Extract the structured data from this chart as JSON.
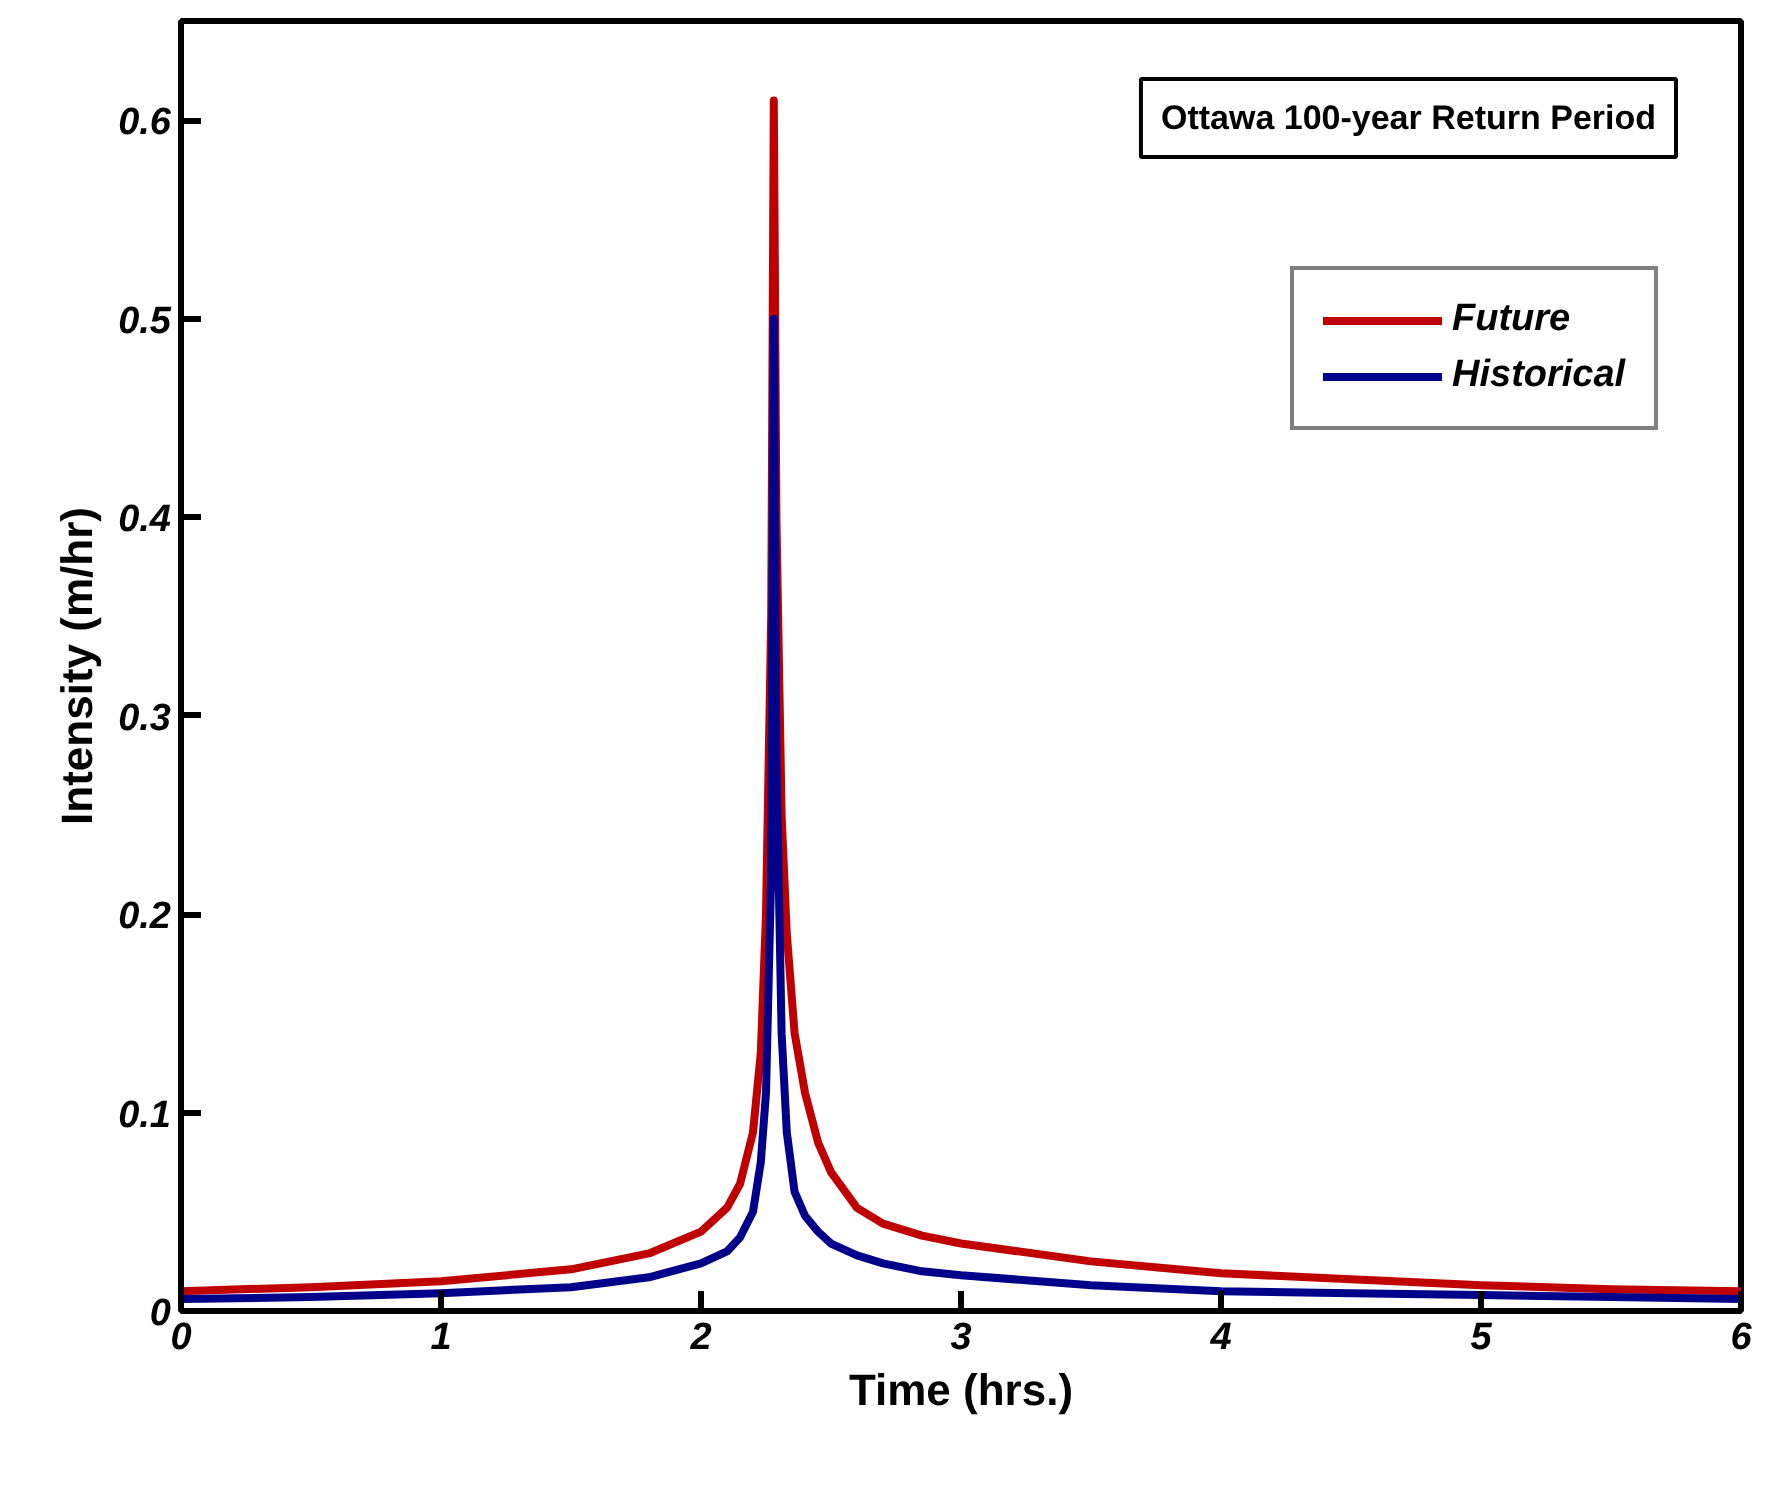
{
  "chart_data": {
    "type": "line",
    "title": "Ottawa 100-year Return Period",
    "xlabel": "Time (hrs.)",
    "ylabel": "Intensity (m/hr)",
    "xlim": [
      0,
      6
    ],
    "ylim": [
      0,
      0.65
    ],
    "xticks": [
      0,
      1,
      2,
      3,
      4,
      5,
      6
    ],
    "yticks": [
      0,
      0.1,
      0.2,
      0.3,
      0.4,
      0.5,
      0.6
    ],
    "grid": false,
    "legend": "top right",
    "marker": "none",
    "line_style": "solid",
    "series": [
      {
        "name": "Future",
        "color": "#c00000",
        "x": [
          0,
          0.5,
          1,
          1.5,
          1.8,
          2,
          2.1,
          2.15,
          2.2,
          2.23,
          2.25,
          2.27,
          2.28,
          2.29,
          2.31,
          2.33,
          2.36,
          2.4,
          2.45,
          2.5,
          2.6,
          2.7,
          2.85,
          3,
          3.5,
          4,
          4.5,
          5,
          5.5,
          6
        ],
        "values": [
          0.01,
          0.012,
          0.015,
          0.021,
          0.029,
          0.04,
          0.052,
          0.064,
          0.09,
          0.13,
          0.2,
          0.35,
          0.61,
          0.4,
          0.25,
          0.19,
          0.14,
          0.11,
          0.085,
          0.07,
          0.052,
          0.044,
          0.038,
          0.034,
          0.025,
          0.019,
          0.016,
          0.013,
          0.011,
          0.01
        ]
      },
      {
        "name": "Historical",
        "color": "#00008b",
        "x": [
          0,
          0.5,
          1,
          1.5,
          1.8,
          2,
          2.1,
          2.15,
          2.2,
          2.23,
          2.25,
          2.27,
          2.28,
          2.29,
          2.31,
          2.33,
          2.36,
          2.4,
          2.45,
          2.5,
          2.6,
          2.7,
          2.85,
          3,
          3.5,
          4,
          4.5,
          5,
          5.5,
          6
        ],
        "values": [
          0.006,
          0.007,
          0.009,
          0.012,
          0.017,
          0.024,
          0.03,
          0.037,
          0.05,
          0.075,
          0.11,
          0.22,
          0.5,
          0.28,
          0.14,
          0.09,
          0.06,
          0.048,
          0.04,
          0.034,
          0.028,
          0.024,
          0.02,
          0.018,
          0.013,
          0.01,
          0.009,
          0.008,
          0.007,
          0.006
        ]
      }
    ]
  }
}
